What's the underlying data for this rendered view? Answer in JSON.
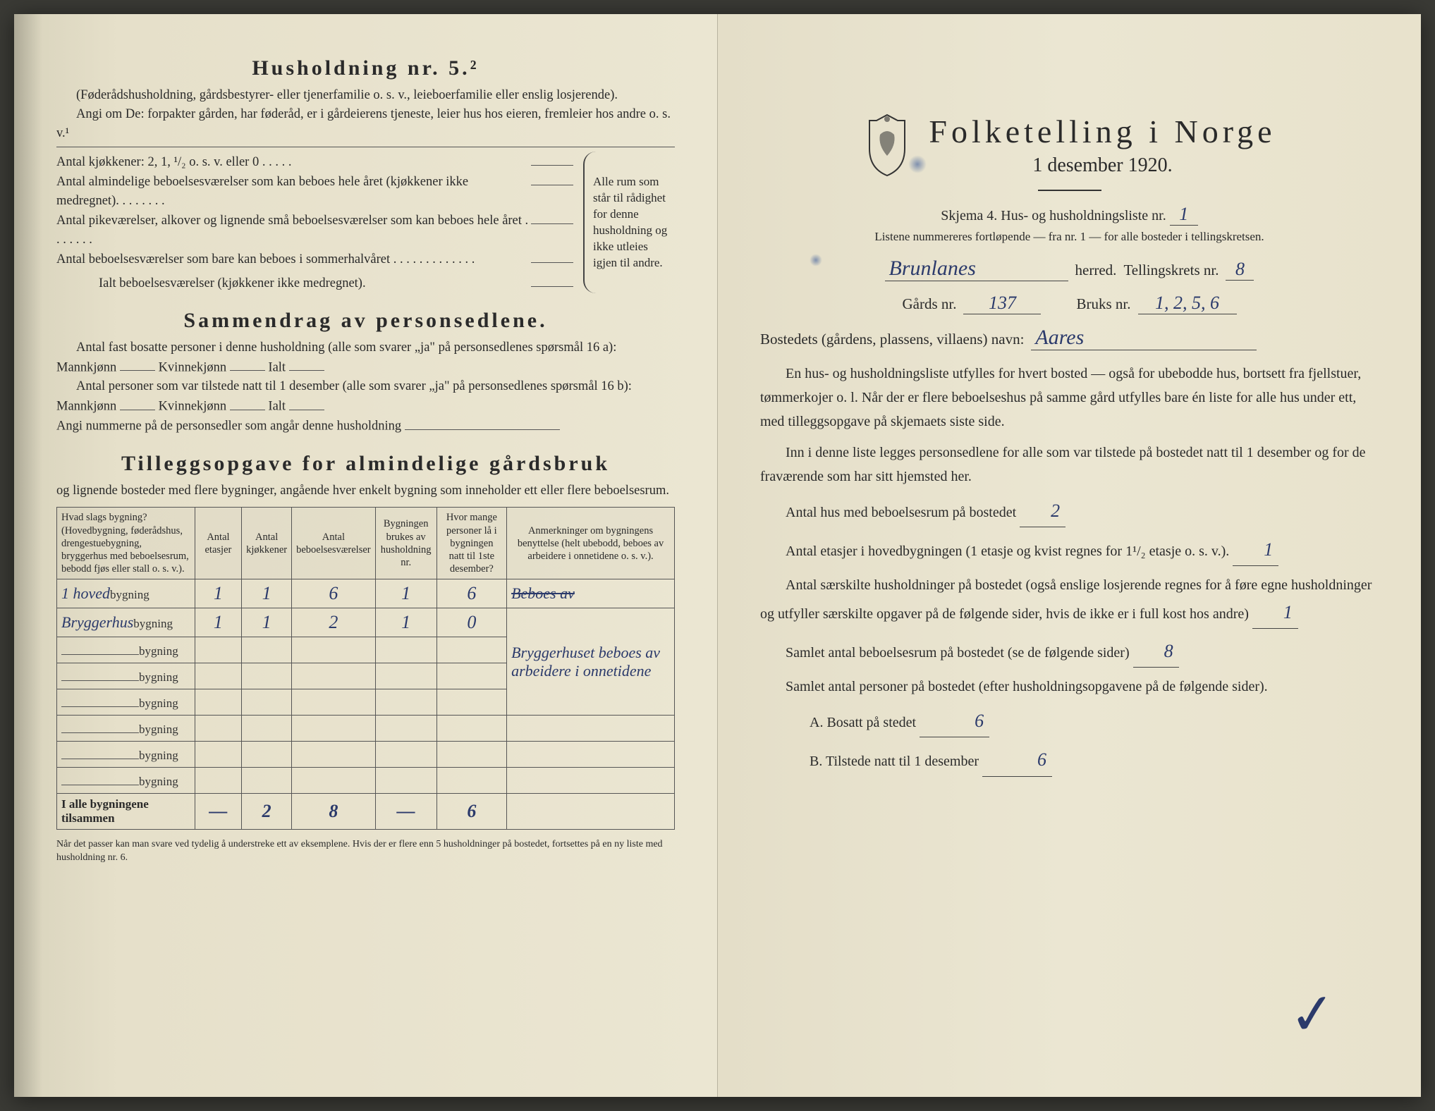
{
  "left": {
    "heading_hush": "Husholdning nr. 5.²",
    "hush_note": "(Føderådshusholdning, gårdsbestyrer- eller tjenerfamilie o. s. v., leieboerfamilie eller enslig losjerende).",
    "angi": "Angi om De: forpakter gården, har føderåd, er i gårdeierens tjeneste, leier hus hos eieren, fremleier hos andre o. s. v.¹",
    "kjokken": "Antal kjøkkener: 2, 1, ¹/₂ o. s. v. eller 0 . . . . .",
    "rooms": [
      "Antal almindelige beboelsesværelser som kan beboes hele året (kjøkkener ikke medregnet). . . . . . . .",
      "Antal pikeværelser, alkover og lignende små beboelsesværelser som kan beboes hele året . . . . . . .",
      "Antal beboelsesværelser som bare kan beboes i sommerhalvåret . . . . . . . . . . . . ."
    ],
    "ialt": "Ialt beboelsesværelser (kjøkkener ikke medregnet).",
    "brace_text": "Alle rum som står til rådighet for denne husholdning og ikke utleies igjen til andre.",
    "heading_sammen": "Sammendrag av personsedlene.",
    "sammen_l1": "Antal fast bosatte personer i denne husholdning (alle som svarer „ja\" på personsedlenes spørsmål 16 a): Mannkjønn",
    "kvinne": "Kvinnekjønn",
    "ialt_lbl": "Ialt",
    "sammen_l2": "Antal personer som var tilstede natt til 1 desember (alle som svarer „ja\" på personsedlenes spørsmål 16 b): Mannkjønn",
    "angi_num": "Angi nummerne på de personsedler som angår denne husholdning",
    "heading_tillegg": "Tilleggsopgave for almindelige gårdsbruk",
    "tillegg_note": "og lignende bosteder med flere bygninger, angående hver enkelt bygning som inneholder ett eller flere beboelsesrum.",
    "table": {
      "headers": [
        "Hvad slags bygning?\n(Hovedbygning, føderådshus, drengestuebygning, bryggerhus med beboelsesrum, bebodd fjøs eller stall o. s. v.).",
        "Antal etasjer",
        "Antal kjøkkener",
        "Antal beboelsesværelser",
        "Bygningen brukes av husholdning nr.",
        "Hvor mange personer lå i bygningen natt til 1ste desember?",
        "Anmerkninger om bygningens benyttelse (helt ubebodd, beboes av arbeidere i onnetidene o. s. v.)."
      ],
      "rows": [
        {
          "pre": "1 hoved",
          "suf": "bygning",
          "c": [
            "1",
            "1",
            "6",
            "1",
            "6",
            ""
          ],
          "note_strike": "Beboes av"
        },
        {
          "pre": "Bryggerhus",
          "suf": "bygning",
          "c": [
            "1",
            "1",
            "2",
            "1",
            "0",
            "Bryggerhuset beboes av arbeidere i onnetidene"
          ]
        },
        {
          "pre": "",
          "suf": "bygning",
          "c": [
            "",
            "",
            "",
            "",
            "",
            ""
          ]
        },
        {
          "pre": "",
          "suf": "bygning",
          "c": [
            "",
            "",
            "",
            "",
            "",
            ""
          ]
        },
        {
          "pre": "",
          "suf": "bygning",
          "c": [
            "",
            "",
            "",
            "",
            "",
            ""
          ]
        },
        {
          "pre": "",
          "suf": "bygning",
          "c": [
            "",
            "",
            "",
            "",
            "",
            ""
          ]
        },
        {
          "pre": "",
          "suf": "bygning",
          "c": [
            "",
            "",
            "",
            "",
            "",
            ""
          ]
        },
        {
          "pre": "",
          "suf": "bygning",
          "c": [
            "",
            "",
            "",
            "",
            "",
            ""
          ]
        }
      ],
      "footer_label": "I alle bygningene tilsammen",
      "footer": [
        "—",
        "2",
        "8",
        "—",
        "6",
        ""
      ]
    },
    "footnote": "Når det passer kan man svare ved tydelig å understreke ett av eksemplene.\nHvis der er flere enn 5 husholdninger på bostedet, fortsettes på en ny liste med husholdning nr. 6."
  },
  "right": {
    "title": "Folketelling i Norge",
    "date": "1 desember 1920.",
    "skjema": "Skjema 4.   Hus- og husholdningsliste nr.",
    "list_nr": "1",
    "listnote": "Listene nummereres fortløpende — fra nr. 1 — for alle bosteder i tellingskretsen.",
    "herred_val": "Brunlanes",
    "herred_lbl": "herred.",
    "krets_lbl": "Tellingskrets nr.",
    "krets_val": "8",
    "gard_lbl": "Gårds nr.",
    "gard_val": "137",
    "bruk_lbl": "Bruks nr.",
    "bruk_val": "1, 2, 5, 6",
    "bosted_lbl": "Bostedets (gårdens, plassens, villaens) navn:",
    "bosted_val": "Aares",
    "para1": "En hus- og husholdningsliste utfylles for hvert bosted — også for ubebodde hus, bortsett fra fjellstuer, tømmerkojer o. l.  Når der er flere beboelseshus på samme gård utfylles bare én liste for alle hus under ett, med tilleggsopgave på skjemaets siste side.",
    "para2": "Inn i denne liste legges personsedlene for alle som var tilstede på bostedet natt til 1 desember og for de fraværende som har sitt hjemsted her.",
    "q_hus": "Antal hus med beboelsesrum på bostedet",
    "q_hus_val": "2",
    "q_etasjer": "Antal etasjer i hovedbygningen (1 etasje og kvist regnes for 1¹/₂ etasje o. s. v.).",
    "q_etasjer_val": "1",
    "q_hush": "Antal særskilte husholdninger på bostedet (også enslige losjerende regnes for å føre egne husholdninger og utfyller særskilte opgaver på de følgende sider, hvis de ikke er i full kost hos andre)",
    "q_hush_val": "1",
    "q_rom": "Samlet antal beboelsesrum på bostedet (se de følgende sider)",
    "q_rom_val": "8",
    "q_pers": "Samlet antal personer på bostedet (efter husholdningsopgavene på de følgende sider).",
    "a_lbl": "A.  Bosatt på stedet",
    "a_val": "6",
    "b_lbl": "B.  Tilstede natt til 1 desember",
    "b_val": "6"
  },
  "colors": {
    "ink": "#2b3a6b",
    "print": "#2a2a2a",
    "paper": "#e8e3d0"
  }
}
